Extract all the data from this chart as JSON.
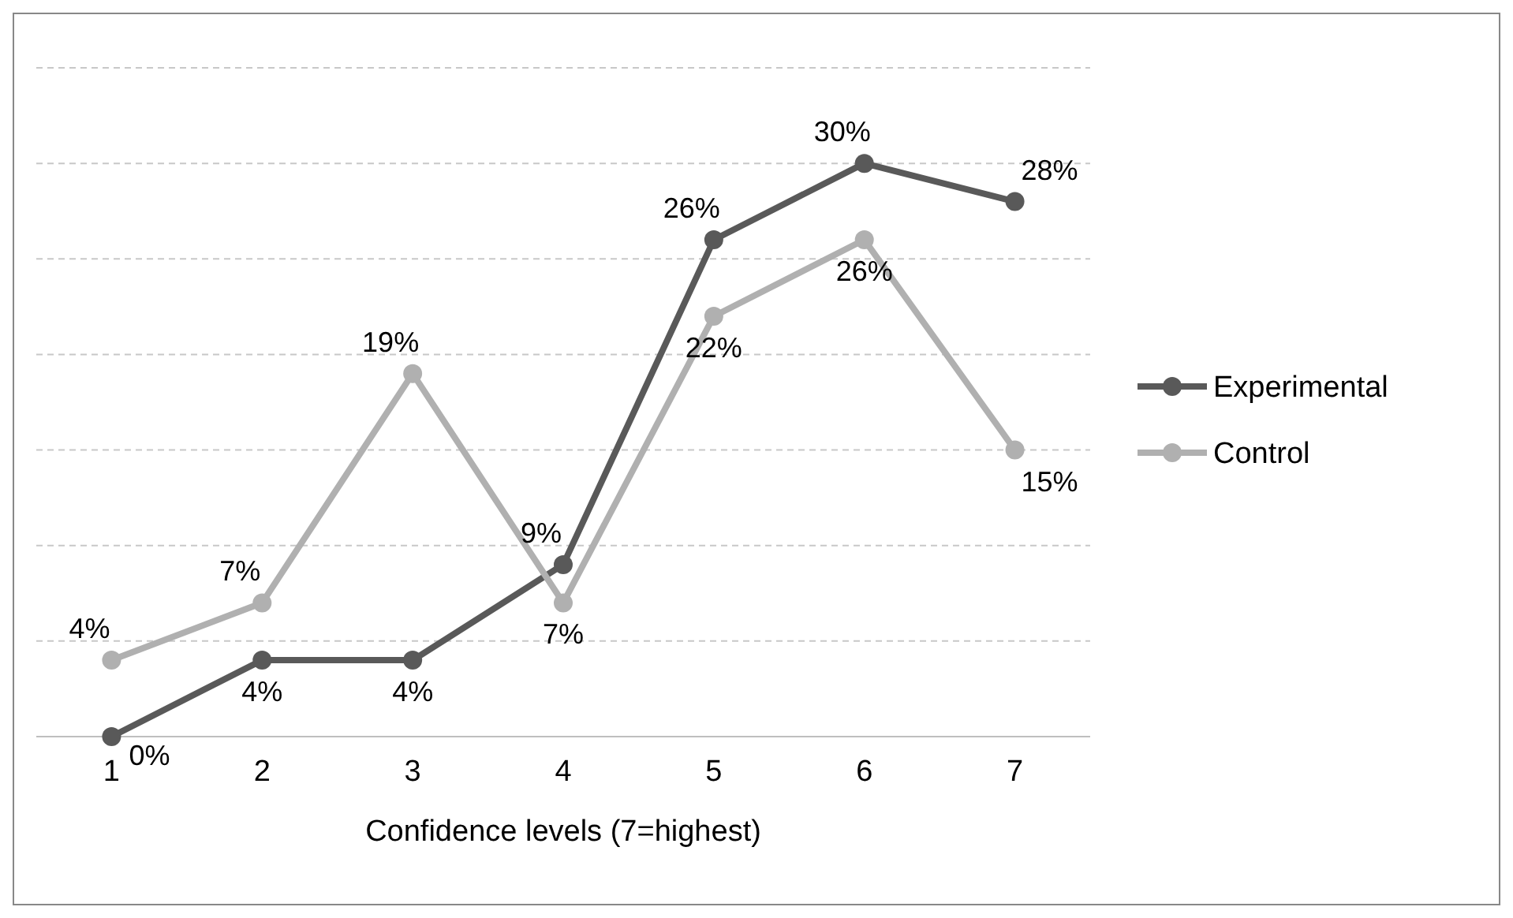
{
  "chart_data": {
    "type": "line",
    "xlabel": "Confidence levels (7=highest)",
    "categories": [
      "1",
      "2",
      "3",
      "4",
      "5",
      "6",
      "7"
    ],
    "series": [
      {
        "name": "Experimental",
        "color": "#595959",
        "values": [
          0,
          4,
          4,
          9,
          26,
          30,
          28
        ],
        "value_labels": [
          "0%",
          "4%",
          "4%",
          "9%",
          "26%",
          "30%",
          "28%"
        ]
      },
      {
        "name": "Control",
        "color": "#b0b0b0",
        "values": [
          4,
          7,
          19,
          7,
          22,
          26,
          15
        ],
        "value_labels": [
          "4%",
          "7%",
          "19%",
          "7%",
          "22%",
          "26%",
          "15%"
        ]
      }
    ],
    "ylim": [
      0,
      35
    ],
    "yticks": [
      {
        "value": 0,
        "label": null
      },
      {
        "value": 5,
        "label": null
      },
      {
        "value": 10,
        "label": null
      },
      {
        "value": 15,
        "label": null
      },
      {
        "value": 20,
        "label": null
      },
      {
        "value": 25,
        "label": null
      },
      {
        "value": 30,
        "label": null
      },
      {
        "value": 35,
        "label": null
      }
    ],
    "tick_labels": "x",
    "grid": "y",
    "legend": "right",
    "marker": "circle",
    "line_style": "solid"
  }
}
